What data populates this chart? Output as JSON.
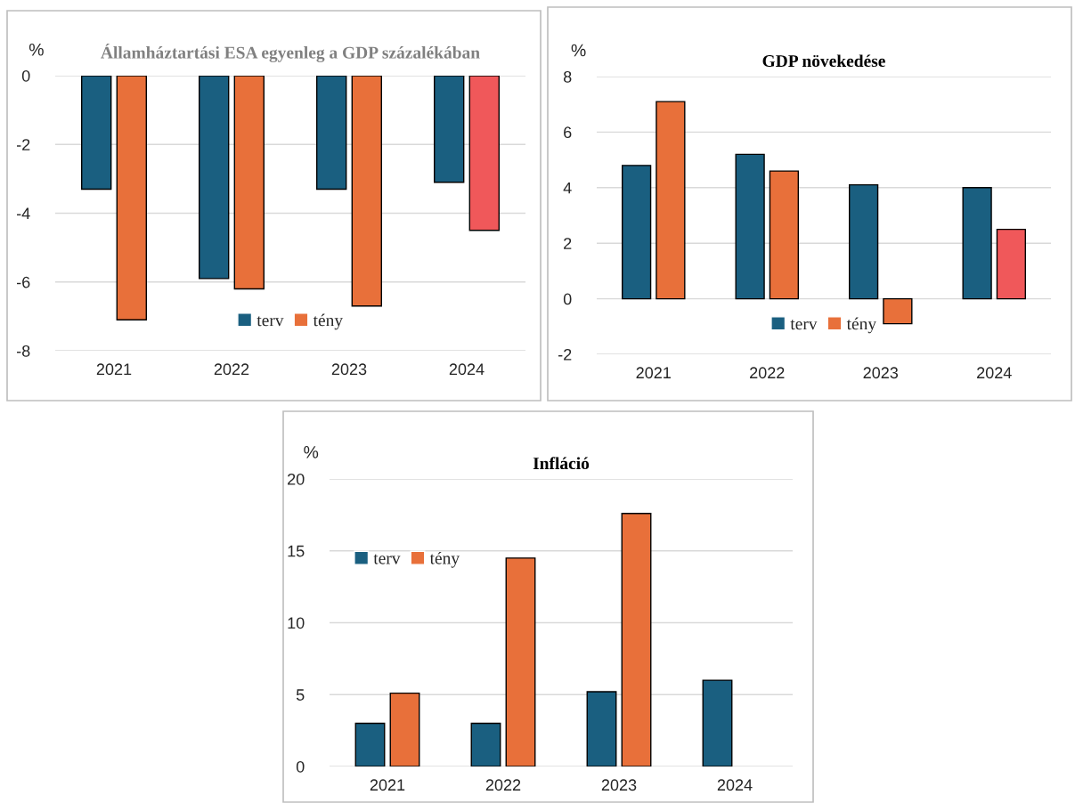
{
  "chart_data": [
    {
      "type": "bar",
      "title": "Államháztartási ESA egyenleg a GDP százalékában",
      "ylabel": "%",
      "categories": [
        "2021",
        "2022",
        "2023",
        "2024"
      ],
      "ylim": [
        -8,
        0
      ],
      "yticks": [
        -8,
        -6,
        -4,
        -2,
        0
      ],
      "grid": "y",
      "legend": "bottom",
      "series": [
        {
          "name": "terv",
          "color": "#1a5f80",
          "values": [
            -3.3,
            -5.9,
            -3.3,
            -3.1
          ]
        },
        {
          "name": "tény",
          "color": "#e8703a",
          "colors": [
            "#e8703a",
            "#e8703a",
            "#e8703a",
            "#f0585a"
          ],
          "values": [
            -7.1,
            -6.2,
            -6.7,
            -4.5
          ]
        }
      ]
    },
    {
      "type": "bar",
      "title": "GDP növekedése",
      "ylabel": "%",
      "categories": [
        "2021",
        "2022",
        "2023",
        "2024"
      ],
      "ylim": [
        -2,
        8
      ],
      "yticks": [
        -2,
        0,
        2,
        4,
        6,
        8
      ],
      "grid": "y",
      "legend": "bottom",
      "series": [
        {
          "name": "terv",
          "color": "#1a5f80",
          "values": [
            4.8,
            5.2,
            4.1,
            4.0
          ]
        },
        {
          "name": "tény",
          "color": "#e8703a",
          "colors": [
            "#e8703a",
            "#e8703a",
            "#e8703a",
            "#f0585a"
          ],
          "values": [
            7.1,
            4.6,
            -0.9,
            2.5
          ]
        }
      ]
    },
    {
      "type": "bar",
      "title": "Infláció",
      "ylabel": "%",
      "categories": [
        "2021",
        "2022",
        "2023",
        "2024"
      ],
      "ylim": [
        0,
        20
      ],
      "yticks": [
        0,
        5,
        10,
        15,
        20
      ],
      "grid": "y",
      "legend": "left",
      "series": [
        {
          "name": "terv",
          "color": "#1a5f80",
          "values": [
            3.0,
            3.0,
            5.2,
            6.0
          ]
        },
        {
          "name": "tény",
          "color": "#e8703a",
          "values": [
            5.1,
            14.5,
            17.6,
            null
          ]
        }
      ]
    }
  ]
}
